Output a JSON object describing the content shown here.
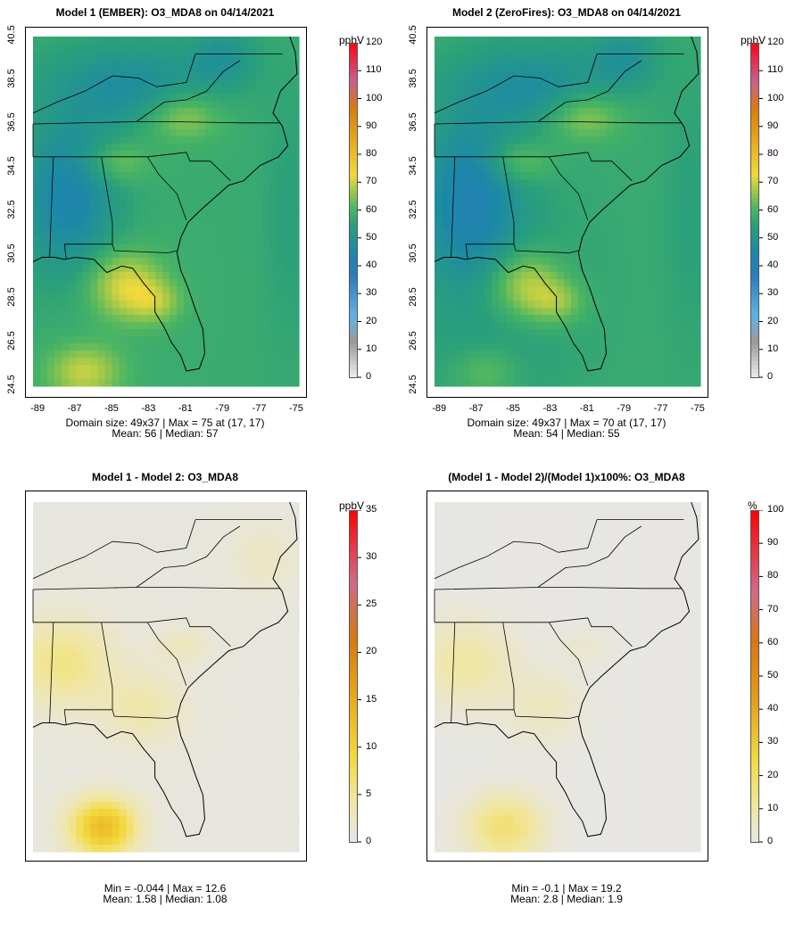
{
  "panels": [
    {
      "id": "ember",
      "title": "Model 1 (EMBER): O3_MDA8 on 04/14/2021",
      "field": "ember",
      "stats_line1": "Domain size: 49x37 | Max = 75 at (17, 17)",
      "stats_line2": "Mean: 56 |  Median: 57",
      "colorbar": {
        "unit": "ppbV",
        "min": 0,
        "max": 120,
        "ticks": [
          "0",
          "10",
          "20",
          "30",
          "40",
          "50",
          "60",
          "70",
          "80",
          "90",
          "100",
          "110",
          "120"
        ]
      },
      "show_axes": true
    },
    {
      "id": "zerofires",
      "title": "Model 2 (ZeroFires): O3_MDA8 on 04/14/2021",
      "field": "zero",
      "stats_line1": "Domain size: 49x37 | Max = 70 at (17, 17)",
      "stats_line2": "Mean: 54 |  Median: 55",
      "colorbar": {
        "unit": "ppbV",
        "min": 0,
        "max": 120,
        "ticks": [
          "0",
          "10",
          "20",
          "30",
          "40",
          "50",
          "60",
          "70",
          "80",
          "90",
          "100",
          "110",
          "120"
        ]
      },
      "show_axes": true
    },
    {
      "id": "diff",
      "title": "Model 1 - Model 2: O3_MDA8",
      "field": "diff",
      "stats_line1": "Min = -0.044 | Max = 12.6",
      "stats_line2": "Mean: 1.58 |  Median: 1.08",
      "colorbar": {
        "unit": "ppbV",
        "min": 0,
        "max": 35,
        "ticks": [
          "0",
          "5",
          "10",
          "15",
          "20",
          "25",
          "30",
          "35"
        ]
      },
      "show_axes": false
    },
    {
      "id": "pctdiff",
      "title": "(Model 1 - Model 2)/(Model 1)x100%: O3_MDA8",
      "field": "pct",
      "stats_line1": "Min = -0.1 | Max = 19.2",
      "stats_line2": "Mean: 2.8 |  Median: 1.9",
      "colorbar": {
        "unit": "%",
        "min": 0,
        "max": 100,
        "ticks": [
          "0",
          "10",
          "20",
          "30",
          "40",
          "50",
          "60",
          "70",
          "80",
          "90",
          "100"
        ]
      },
      "show_axes": false
    }
  ],
  "axes": {
    "x_ticks": [
      "-89",
      "-87",
      "-85",
      "-83",
      "-81",
      "-79",
      "-77",
      "-75"
    ],
    "y_ticks": [
      "24.5",
      "26.5",
      "28.5",
      "30.5",
      "32.5",
      "34.5",
      "36.5",
      "38.5",
      "40.5"
    ]
  },
  "colors": {
    "land_outline": "#000000",
    "background_low": "#e6e6e6",
    "blue": "#2a7bbf",
    "green": "#3fb06a",
    "yellow": "#f2d93c",
    "orange": "#e08a10",
    "red": "#ff0000"
  }
}
